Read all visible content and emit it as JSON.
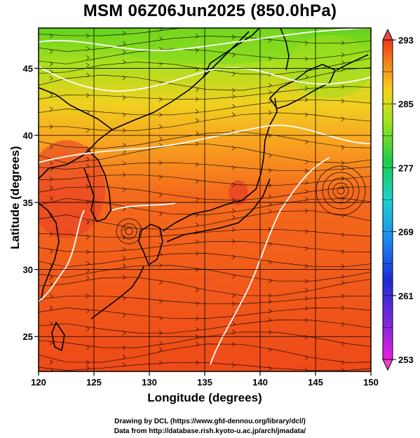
{
  "title": "MSM 06Z06Jun2025 (850.0hPa)",
  "x_axis": {
    "label": "Longitude (degrees)",
    "range": [
      120,
      150
    ],
    "ticks": [
      "120",
      "125",
      "130",
      "135",
      "140",
      "145",
      "150"
    ]
  },
  "y_axis": {
    "label": "Latitude  (degrees)",
    "range": [
      22.4,
      48
    ],
    "ticks": [
      "25",
      "30",
      "35",
      "40",
      "45"
    ]
  },
  "colorbar": {
    "range": [
      253,
      293
    ],
    "labels": [
      "293",
      "285",
      "277",
      "269",
      "261",
      "253"
    ]
  },
  "colors": {
    "warm": "#f04a1a",
    "mid": "#f8b828",
    "cool": "#9ede1e",
    "contour": "#ffffff",
    "stream": "#000000"
  },
  "credits": {
    "line1": "Drawing by DCL (https://www.gfd-dennou.org/library/dcl/)",
    "line2": "Data from http://database.rish.kyoto-u.ac.jp/arch/jmadata/"
  }
}
